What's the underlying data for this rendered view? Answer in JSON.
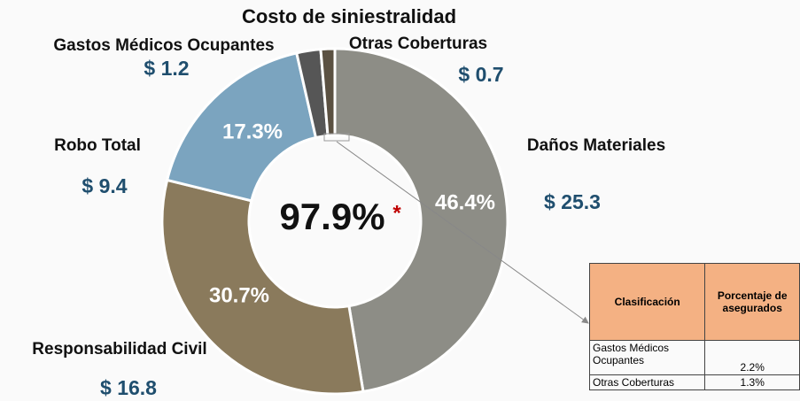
{
  "chart_data": {
    "type": "donut",
    "title": "Costo de siniestralidad",
    "categories": [
      "Daños Materiales",
      "Responsabilidad Civil",
      "Robo Total",
      "Gastos Médicos Ocupantes",
      "Otras Coberturas"
    ],
    "values": [
      25.3,
      16.8,
      9.4,
      1.2,
      0.7
    ],
    "value_labels": [
      "$ 25.3",
      "$ 16.8",
      "$ 9.4",
      "$ 1.2",
      "$ 0.7"
    ],
    "percent_labels": [
      "46.4%",
      "30.7%",
      "17.3%"
    ],
    "colors": [
      "#8d8d86",
      "#8a7a5c",
      "#7ba4bf",
      "#565656",
      "#5b5142"
    ],
    "center_label": "97.9%",
    "center_mark": "*"
  },
  "table": {
    "header": [
      "Clasificación",
      "Porcentaje de asegurados"
    ],
    "rows": [
      [
        "Gastos Médicos Ocupantes",
        "2.2%"
      ],
      [
        "Otras Coberturas",
        "1.3%"
      ]
    ]
  }
}
